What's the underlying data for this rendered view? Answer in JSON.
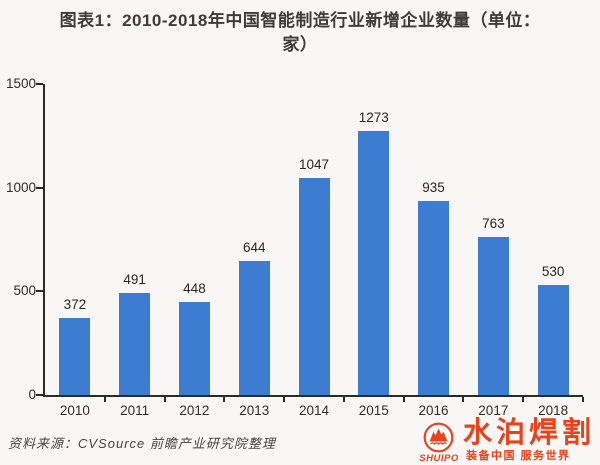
{
  "page": {
    "background": "#f9f7f5"
  },
  "title": {
    "text": "图表1：2010-2018年中国智能制造行业新增企业数量（单位：家）",
    "line1": "图表1：2010-2018年中国智能制造行业新增企业数量（单位：",
    "line2": "家）"
  },
  "chart_data": {
    "type": "bar",
    "categories": [
      "2010",
      "2011",
      "2012",
      "2013",
      "2014",
      "2015",
      "2016",
      "2017",
      "2018"
    ],
    "values": [
      372,
      491,
      448,
      644,
      1047,
      1273,
      935,
      763,
      530
    ],
    "title": "图表1：2010-2018年中国智能制造行业新增企业数量（单位：家）",
    "xlabel": "",
    "ylabel": "",
    "ylim": [
      0,
      1500
    ],
    "yticks": [
      0,
      500,
      1000,
      1500
    ],
    "bar_color": "#3c7dd1",
    "axis_color": "#2b2b2b",
    "grid": false,
    "legend": null,
    "value_labels": true
  },
  "source_note": "资料来源：CVSource  前瞻产业研究院整理",
  "watermark": {
    "brand_cn": "水泊焊割",
    "brand_en": "SHUIPO",
    "slogan": "装备中国  服务世界",
    "color": "#e8431c"
  }
}
